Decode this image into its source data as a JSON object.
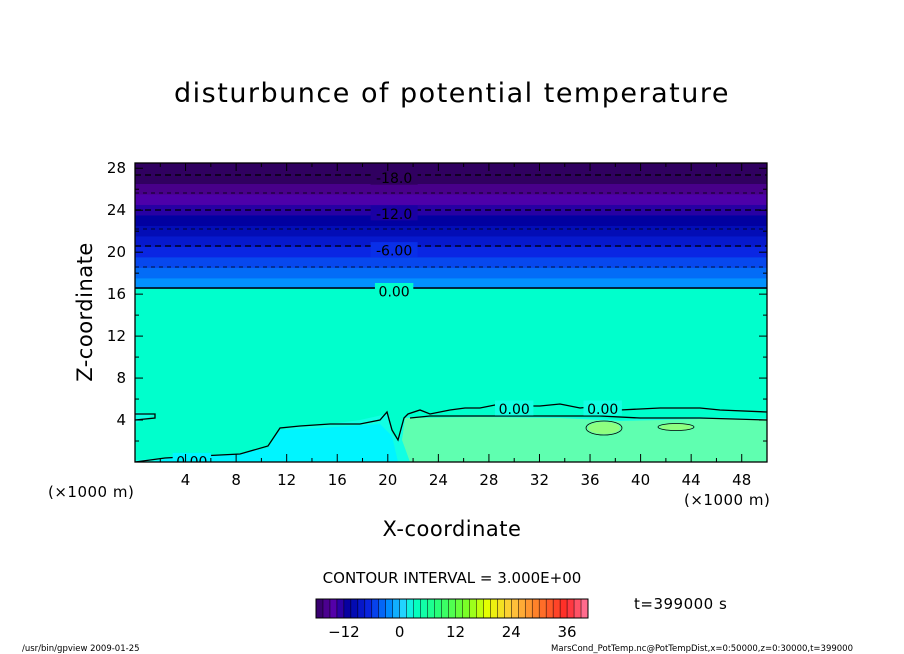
{
  "chart_data": {
    "type": "heatmap",
    "title": "disturbunce of potential temperature",
    "xlabel": "X-coordinate",
    "ylabel": "Z-coordinate",
    "x_unit_left": "(×1000 m)",
    "x_unit_right": "(×1000 m)",
    "xlim": [
      0,
      50
    ],
    "ylim": [
      0,
      28.5
    ],
    "xticks": [
      "4",
      "8",
      "12",
      "16",
      "20",
      "24",
      "28",
      "32",
      "36",
      "40",
      "44",
      "48"
    ],
    "yticks": [
      "4",
      "8",
      "12",
      "16",
      "20",
      "24",
      "28"
    ],
    "contour_interval_label": "CONTOUR INTERVAL = 3.000E+00",
    "time_label": "t=399000 s",
    "colorbar": {
      "ticks": [
        "-12",
        "0",
        "12",
        "24",
        "36"
      ],
      "min": -18,
      "max": 40.5
    },
    "contour_labels": [
      {
        "text": "-18.0",
        "x": 20.5,
        "y": 27.1
      },
      {
        "text": "-12.0",
        "x": 20.5,
        "y": 23.7
      },
      {
        "text": "-6.00",
        "x": 20.5,
        "y": 20.2
      },
      {
        "text": "0.00",
        "x": 20.5,
        "y": 16.3
      },
      {
        "text": "0.00",
        "x": 30.0,
        "y": 5.1
      },
      {
        "text": "0.00",
        "x": 37.0,
        "y": 5.1
      },
      {
        "text": "0.00",
        "x": 4.5,
        "y": 0.1
      }
    ],
    "value_bands": [
      {
        "z_from": 27.5,
        "z_to": 28.5,
        "value": -19.5
      },
      {
        "z_from": 26.5,
        "z_to": 27.5,
        "value": -18
      },
      {
        "z_from": 25.5,
        "z_to": 26.5,
        "value": -16
      },
      {
        "z_from": 24.5,
        "z_to": 25.5,
        "value": -14
      },
      {
        "z_from": 23.5,
        "z_to": 24.5,
        "value": -12.5
      },
      {
        "z_from": 22.5,
        "z_to": 23.5,
        "value": -11
      },
      {
        "z_from": 21.5,
        "z_to": 22.5,
        "value": -9.5
      },
      {
        "z_from": 20.5,
        "z_to": 21.5,
        "value": -8
      },
      {
        "z_from": 19.5,
        "z_to": 20.5,
        "value": -6.5
      },
      {
        "z_from": 18.5,
        "z_to": 19.5,
        "value": -5
      },
      {
        "z_from": 17.5,
        "z_to": 18.5,
        "value": -3.5
      },
      {
        "z_from": 16.5,
        "z_to": 17.5,
        "value": -2
      },
      {
        "z_from": 0,
        "z_to": 16.5,
        "value": 0.5
      }
    ],
    "footer_left": "/usr/bin/gpview   2009-01-25",
    "footer_right": "MarsCond_PotTemp.nc@PotTempDist,x=0:50000,z=0:30000,t=399000"
  }
}
